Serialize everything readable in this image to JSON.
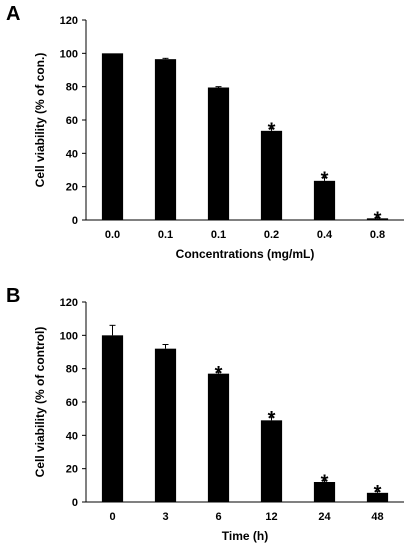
{
  "chart_data": [
    {
      "type": "bar",
      "panel": "A",
      "categories": [
        "0.0",
        "0.1",
        "0.1",
        "0.2",
        "0.4",
        "0.8"
      ],
      "values": [
        100,
        96.5,
        79.5,
        53.5,
        23.5,
        1
      ],
      "errors": [
        0,
        0.5,
        0.5,
        1.5,
        2,
        0.5
      ],
      "significance": [
        "",
        "",
        "",
        "*",
        "*",
        "*"
      ],
      "xlabel": "Concentrations (mg/mL)",
      "ylabel": "Cell viability (% of con.)",
      "ylim": [
        0,
        120
      ],
      "yticks": [
        0,
        20,
        40,
        60,
        80,
        100,
        120
      ],
      "bar_color": "#000000",
      "grid": false
    },
    {
      "type": "bar",
      "panel": "B",
      "categories": [
        "0",
        "3",
        "6",
        "12",
        "24",
        "48"
      ],
      "values": [
        100,
        92,
        77,
        49,
        12,
        5.5
      ],
      "errors": [
        6,
        2.5,
        1,
        2,
        1,
        1
      ],
      "significance": [
        "",
        "",
        "*",
        "*",
        "*",
        "*"
      ],
      "xlabel": "Time (h)",
      "ylabel": "Cell viability (% of control)",
      "ylim": [
        0,
        120
      ],
      "yticks": [
        0,
        20,
        40,
        60,
        80,
        100,
        120
      ],
      "bar_color": "#000000",
      "grid": false
    }
  ]
}
